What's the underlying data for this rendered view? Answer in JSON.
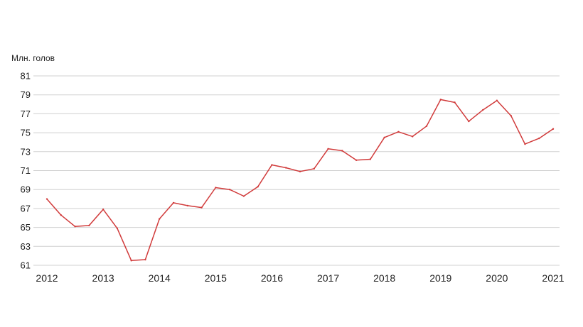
{
  "chart_data": {
    "type": "line",
    "title": "",
    "ylabel": "Млн. голов",
    "xlabel": "",
    "ylim": [
      61,
      81
    ],
    "yticks": [
      "81",
      "79",
      "77",
      "75",
      "73",
      "71",
      "69",
      "67",
      "65",
      "63",
      "61"
    ],
    "ytick_values": [
      81,
      79,
      77,
      75,
      73,
      71,
      69,
      67,
      65,
      63,
      61
    ],
    "xticks": [
      "2012",
      "2013",
      "2014",
      "2015",
      "2016",
      "2017",
      "2018",
      "2019",
      "2020",
      "2021"
    ],
    "xtick_values": [
      2012,
      2013,
      2014,
      2015,
      2016,
      2017,
      2018,
      2019,
      2020,
      2021
    ],
    "xlim": [
      2012,
      2021
    ],
    "grid": "horizontal",
    "line_color": "#d13b3b",
    "grid_color": "#d0d0d0",
    "series": [
      {
        "x": [
          2012,
          2012.25,
          2012.5,
          2012.75,
          2013,
          2013.25,
          2013.5,
          2013.75,
          2014,
          2014.25,
          2014.5,
          2014.75,
          2015,
          2015.25,
          2015.5,
          2015.75,
          2016,
          2016.25,
          2016.5,
          2016.75,
          2017,
          2017.25,
          2017.5,
          2017.75,
          2018,
          2018.25,
          2018.5,
          2018.75,
          2019,
          2019.25,
          2019.5,
          2019.75,
          2020,
          2020.25,
          2020.5,
          2020.75,
          2021
        ],
        "values": [
          68.0,
          66.3,
          65.1,
          65.2,
          66.9,
          64.9,
          61.5,
          61.6,
          65.9,
          67.6,
          67.3,
          67.1,
          69.2,
          69.0,
          68.3,
          69.3,
          71.6,
          71.3,
          70.9,
          71.2,
          73.3,
          73.1,
          72.1,
          72.2,
          74.5,
          75.1,
          74.6,
          75.7,
          78.5,
          78.2,
          76.2,
          77.4,
          78.4,
          76.8,
          73.8,
          74.4,
          75.4
        ]
      }
    ]
  }
}
